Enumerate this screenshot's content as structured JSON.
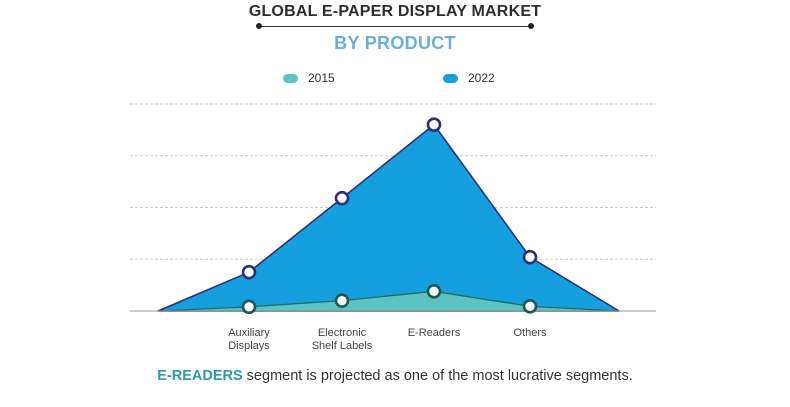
{
  "header": {
    "title": "GLOBAL E-PAPER DISPLAY MARKET",
    "subtitle": "BY PRODUCT"
  },
  "footer": {
    "highlight": "E-READERS",
    "rest": " segment is projected as one of the most lucrative segments."
  },
  "chart_data": {
    "type": "area",
    "title": "GLOBAL E-PAPER DISPLAY MARKET",
    "subtitle": "BY PRODUCT",
    "categories": [
      [
        "Auxiliary",
        "Displays"
      ],
      [
        "Electronic",
        "Shelf Labels"
      ],
      [
        "E-Readers"
      ],
      [
        "Others"
      ]
    ],
    "series": [
      {
        "name": "2022",
        "color": "#159fde",
        "marker_color": "#2e2e78",
        "values": [
          0.75,
          2.18,
          3.6,
          1.04
        ]
      },
      {
        "name": "2015",
        "color": "#5cc3c3",
        "marker_color": "#1c5a50",
        "values": [
          0.08,
          0.2,
          0.38,
          0.09
        ]
      }
    ],
    "ylim": [
      0,
      4
    ],
    "yticks": [
      0,
      1,
      2,
      3,
      4
    ],
    "grid": true,
    "legend": "top-center",
    "xlabel": "",
    "ylabel": ""
  }
}
